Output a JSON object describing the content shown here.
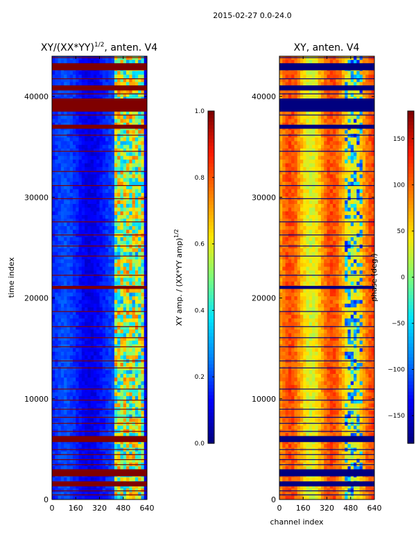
{
  "suptitle": "2015-02-27 0.0-24.0",
  "colormap": [
    "#00007f",
    "#0000ff",
    "#0080ff",
    "#00e5ff",
    "#7dff7a",
    "#ffe600",
    "#ff8000",
    "#ff1a00",
    "#7f0000"
  ],
  "chart_data": [
    {
      "type": "heatmap",
      "title_main": "XY/(XX*YY)",
      "title_sup": "1/2",
      "title_rest": ", anten. V4",
      "xlabel": "",
      "ylabel": "time index",
      "xticks": [
        0,
        160,
        320,
        480,
        640
      ],
      "yticks": [
        0,
        10000,
        20000,
        30000,
        40000
      ],
      "xlim": [
        0,
        640
      ],
      "ylim": [
        0,
        44000
      ],
      "colorbar": {
        "label": "XY amp. / (XX*YY amp)",
        "label_sup": "1/2",
        "ticks": [
          0.0,
          0.2,
          0.4,
          0.6,
          0.8,
          1.0
        ],
        "tick_labels": [
          "0.0",
          "0.2",
          "0.4",
          "0.6",
          "0.8",
          "1.0"
        ],
        "range": [
          0,
          1
        ]
      },
      "flagged_bands": [
        [
          1300,
          1800
        ],
        [
          2300,
          3000
        ],
        [
          5700,
          6300
        ],
        [
          20900,
          21200
        ],
        [
          36800,
          37200
        ],
        [
          38500,
          39800
        ],
        [
          40600,
          41100
        ],
        [
          42600,
          43300
        ]
      ],
      "flag_lines": [
        500,
        900,
        3500,
        4000,
        4500,
        5000,
        6800,
        7600,
        8200,
        9000,
        9900,
        11000,
        13100,
        13800,
        15200,
        16100,
        17200,
        18700,
        22300,
        24200,
        25200,
        26300,
        27600,
        29900,
        31200,
        32600,
        34600,
        36200,
        38200,
        40300,
        41800,
        43900
      ]
    },
    {
      "type": "heatmap",
      "title_main": "XY, anten. V4",
      "xlabel": "channel index",
      "ylabel": "",
      "xticks": [
        0,
        160,
        320,
        480,
        640
      ],
      "yticks": [
        0,
        10000,
        20000,
        30000,
        40000
      ],
      "xlim": [
        0,
        640
      ],
      "ylim": [
        0,
        44000
      ],
      "colorbar": {
        "label": "phase (deg.)",
        "ticks": [
          -150,
          -100,
          -50,
          0,
          50,
          100,
          150
        ],
        "tick_labels": [
          "−150",
          "−100",
          "−50",
          "0",
          "50",
          "100",
          "150"
        ],
        "range": [
          -180,
          180
        ]
      },
      "flagged_bands": [
        [
          1300,
          1800
        ],
        [
          2300,
          3000
        ],
        [
          5700,
          6300
        ],
        [
          20900,
          21200
        ],
        [
          36800,
          37200
        ],
        [
          38500,
          39800
        ],
        [
          40600,
          41100
        ],
        [
          42600,
          43300
        ]
      ],
      "flag_lines": [
        500,
        900,
        3500,
        4000,
        4500,
        5000,
        6800,
        7600,
        8200,
        9000,
        9900,
        11000,
        13100,
        13800,
        15200,
        16100,
        17200,
        18700,
        22300,
        24200,
        25200,
        26300,
        27600,
        29900,
        31200,
        32600,
        34600,
        36200,
        38200,
        40300,
        41800,
        43900
      ]
    }
  ]
}
